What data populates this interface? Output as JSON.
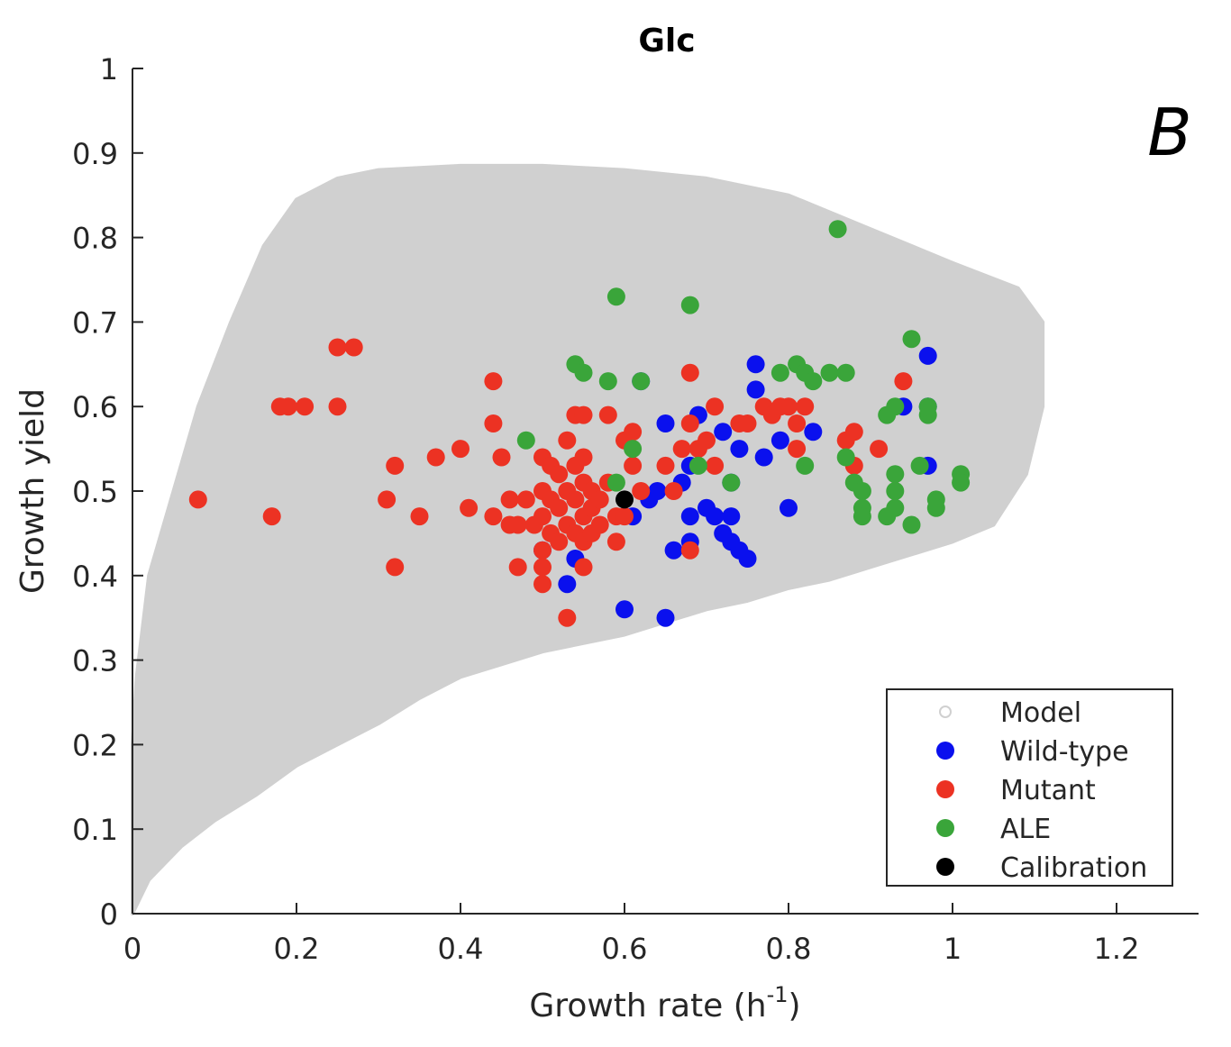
{
  "chart_data": {
    "type": "scatter",
    "title": "Glc",
    "panel_label": "B",
    "xlabel": "Growth rate (h",
    "xlabel_sup": "-1",
    "xlabel_end": ")",
    "ylabel": "Growth yield",
    "xlim": [
      0,
      1.3
    ],
    "ylim": [
      0,
      1
    ],
    "xticks": [
      0,
      0.2,
      0.4,
      0.6,
      0.8,
      1,
      1.2
    ],
    "xtick_labels": [
      "0",
      "0.2",
      "0.4",
      "0.6",
      "0.8",
      "1",
      "1.2"
    ],
    "yticks": [
      0,
      0.1,
      0.2,
      0.3,
      0.4,
      0.5,
      0.6,
      0.7,
      0.8,
      0.9,
      1
    ],
    "ytick_labels": [
      "0",
      "0.1",
      "0.2",
      "0.3",
      "0.4",
      "0.5",
      "0.6",
      "0.7",
      "0.8",
      "0.9",
      "1"
    ],
    "legend_position": "bottom-right",
    "model_region": {
      "name": "Model",
      "color": "#d0d0d0",
      "outline": [
        [
          0,
          0
        ],
        [
          0.02,
          0.04
        ],
        [
          0.06,
          0.08
        ],
        [
          0.1,
          0.11
        ],
        [
          0.15,
          0.14
        ],
        [
          0.2,
          0.175
        ],
        [
          0.25,
          0.2
        ],
        [
          0.3,
          0.225
        ],
        [
          0.35,
          0.255
        ],
        [
          0.4,
          0.28
        ],
        [
          0.45,
          0.295
        ],
        [
          0.5,
          0.31
        ],
        [
          0.55,
          0.32
        ],
        [
          0.6,
          0.33
        ],
        [
          0.65,
          0.345
        ],
        [
          0.7,
          0.36
        ],
        [
          0.75,
          0.37
        ],
        [
          0.8,
          0.385
        ],
        [
          0.85,
          0.395
        ],
        [
          0.9,
          0.41
        ],
        [
          0.95,
          0.425
        ],
        [
          1.0,
          0.44
        ],
        [
          1.05,
          0.46
        ],
        [
          1.09,
          0.52
        ],
        [
          1.11,
          0.6
        ],
        [
          1.11,
          0.7
        ],
        [
          1.08,
          0.74
        ],
        [
          1.0,
          0.77
        ],
        [
          0.9,
          0.81
        ],
        [
          0.8,
          0.85
        ],
        [
          0.7,
          0.87
        ],
        [
          0.6,
          0.88
        ],
        [
          0.5,
          0.885
        ],
        [
          0.4,
          0.885
        ],
        [
          0.3,
          0.88
        ],
        [
          0.25,
          0.87
        ],
        [
          0.2,
          0.845
        ],
        [
          0.16,
          0.79
        ],
        [
          0.12,
          0.7
        ],
        [
          0.08,
          0.6
        ],
        [
          0.05,
          0.5
        ],
        [
          0.02,
          0.4
        ],
        [
          0.005,
          0.28
        ],
        [
          0,
          0.2
        ]
      ]
    },
    "series": [
      {
        "name": "Wild-type",
        "color": "#0a10ee",
        "points": [
          [
            0.5,
            0.43
          ],
          [
            0.53,
            0.39
          ],
          [
            0.54,
            0.42
          ],
          [
            0.6,
            0.36
          ],
          [
            0.61,
            0.47
          ],
          [
            0.62,
            0.63
          ],
          [
            0.63,
            0.49
          ],
          [
            0.64,
            0.5
          ],
          [
            0.65,
            0.58
          ],
          [
            0.65,
            0.35
          ],
          [
            0.66,
            0.43
          ],
          [
            0.67,
            0.51
          ],
          [
            0.68,
            0.53
          ],
          [
            0.68,
            0.47
          ],
          [
            0.68,
            0.44
          ],
          [
            0.69,
            0.59
          ],
          [
            0.7,
            0.48
          ],
          [
            0.71,
            0.47
          ],
          [
            0.72,
            0.57
          ],
          [
            0.72,
            0.45
          ],
          [
            0.73,
            0.51
          ],
          [
            0.73,
            0.47
          ],
          [
            0.73,
            0.44
          ],
          [
            0.74,
            0.43
          ],
          [
            0.74,
            0.55
          ],
          [
            0.75,
            0.42
          ],
          [
            0.76,
            0.62
          ],
          [
            0.76,
            0.65
          ],
          [
            0.77,
            0.54
          ],
          [
            0.79,
            0.56
          ],
          [
            0.8,
            0.48
          ],
          [
            0.83,
            0.57
          ],
          [
            0.94,
            0.6
          ],
          [
            0.97,
            0.66
          ],
          [
            0.97,
            0.6
          ],
          [
            0.97,
            0.53
          ]
        ]
      },
      {
        "name": "Mutant",
        "color": "#ec3223",
        "points": [
          [
            0.08,
            0.49
          ],
          [
            0.17,
            0.47
          ],
          [
            0.18,
            0.6
          ],
          [
            0.19,
            0.6
          ],
          [
            0.21,
            0.6
          ],
          [
            0.25,
            0.6
          ],
          [
            0.25,
            0.67
          ],
          [
            0.27,
            0.67
          ],
          [
            0.31,
            0.49
          ],
          [
            0.32,
            0.53
          ],
          [
            0.32,
            0.41
          ],
          [
            0.35,
            0.47
          ],
          [
            0.37,
            0.54
          ],
          [
            0.4,
            0.55
          ],
          [
            0.41,
            0.48
          ],
          [
            0.44,
            0.63
          ],
          [
            0.44,
            0.58
          ],
          [
            0.44,
            0.47
          ],
          [
            0.45,
            0.54
          ],
          [
            0.46,
            0.49
          ],
          [
            0.46,
            0.46
          ],
          [
            0.47,
            0.46
          ],
          [
            0.47,
            0.41
          ],
          [
            0.48,
            0.49
          ],
          [
            0.49,
            0.46
          ],
          [
            0.5,
            0.54
          ],
          [
            0.5,
            0.5
          ],
          [
            0.5,
            0.47
          ],
          [
            0.5,
            0.43
          ],
          [
            0.5,
            0.41
          ],
          [
            0.5,
            0.39
          ],
          [
            0.51,
            0.53
          ],
          [
            0.51,
            0.49
          ],
          [
            0.51,
            0.45
          ],
          [
            0.52,
            0.52
          ],
          [
            0.52,
            0.48
          ],
          [
            0.52,
            0.44
          ],
          [
            0.53,
            0.56
          ],
          [
            0.53,
            0.5
          ],
          [
            0.53,
            0.46
          ],
          [
            0.53,
            0.35
          ],
          [
            0.54,
            0.59
          ],
          [
            0.54,
            0.53
          ],
          [
            0.54,
            0.49
          ],
          [
            0.54,
            0.45
          ],
          [
            0.55,
            0.59
          ],
          [
            0.55,
            0.54
          ],
          [
            0.55,
            0.51
          ],
          [
            0.55,
            0.47
          ],
          [
            0.55,
            0.44
          ],
          [
            0.55,
            0.41
          ],
          [
            0.56,
            0.5
          ],
          [
            0.56,
            0.48
          ],
          [
            0.56,
            0.45
          ],
          [
            0.57,
            0.49
          ],
          [
            0.57,
            0.46
          ],
          [
            0.58,
            0.59
          ],
          [
            0.58,
            0.51
          ],
          [
            0.59,
            0.47
          ],
          [
            0.59,
            0.44
          ],
          [
            0.6,
            0.56
          ],
          [
            0.6,
            0.47
          ],
          [
            0.61,
            0.57
          ],
          [
            0.61,
            0.53
          ],
          [
            0.62,
            0.5
          ],
          [
            0.65,
            0.53
          ],
          [
            0.66,
            0.5
          ],
          [
            0.67,
            0.55
          ],
          [
            0.68,
            0.64
          ],
          [
            0.68,
            0.58
          ],
          [
            0.68,
            0.43
          ],
          [
            0.69,
            0.55
          ],
          [
            0.7,
            0.56
          ],
          [
            0.71,
            0.53
          ],
          [
            0.71,
            0.6
          ],
          [
            0.74,
            0.58
          ],
          [
            0.75,
            0.58
          ],
          [
            0.77,
            0.6
          ],
          [
            0.78,
            0.59
          ],
          [
            0.79,
            0.6
          ],
          [
            0.8,
            0.6
          ],
          [
            0.81,
            0.58
          ],
          [
            0.81,
            0.55
          ],
          [
            0.82,
            0.6
          ],
          [
            0.87,
            0.56
          ],
          [
            0.88,
            0.57
          ],
          [
            0.88,
            0.53
          ],
          [
            0.91,
            0.55
          ],
          [
            0.94,
            0.63
          ]
        ]
      },
      {
        "name": "ALE",
        "color": "#3aa53a",
        "points": [
          [
            0.48,
            0.56
          ],
          [
            0.54,
            0.65
          ],
          [
            0.55,
            0.64
          ],
          [
            0.58,
            0.63
          ],
          [
            0.59,
            0.73
          ],
          [
            0.59,
            0.51
          ],
          [
            0.61,
            0.55
          ],
          [
            0.62,
            0.63
          ],
          [
            0.68,
            0.72
          ],
          [
            0.69,
            0.53
          ],
          [
            0.73,
            0.51
          ],
          [
            0.79,
            0.64
          ],
          [
            0.81,
            0.65
          ],
          [
            0.82,
            0.53
          ],
          [
            0.82,
            0.64
          ],
          [
            0.83,
            0.63
          ],
          [
            0.85,
            0.64
          ],
          [
            0.86,
            0.81
          ],
          [
            0.87,
            0.54
          ],
          [
            0.87,
            0.64
          ],
          [
            0.88,
            0.51
          ],
          [
            0.89,
            0.5
          ],
          [
            0.89,
            0.48
          ],
          [
            0.89,
            0.47
          ],
          [
            0.92,
            0.59
          ],
          [
            0.92,
            0.47
          ],
          [
            0.93,
            0.6
          ],
          [
            0.93,
            0.5
          ],
          [
            0.93,
            0.48
          ],
          [
            0.93,
            0.52
          ],
          [
            0.95,
            0.68
          ],
          [
            0.95,
            0.46
          ],
          [
            0.96,
            0.53
          ],
          [
            0.97,
            0.59
          ],
          [
            0.97,
            0.6
          ],
          [
            0.98,
            0.49
          ],
          [
            0.98,
            0.48
          ],
          [
            1.01,
            0.52
          ],
          [
            1.01,
            0.51
          ]
        ]
      },
      {
        "name": "Calibration",
        "color": "#000000",
        "points": [
          [
            0.6,
            0.49
          ]
        ]
      }
    ]
  }
}
